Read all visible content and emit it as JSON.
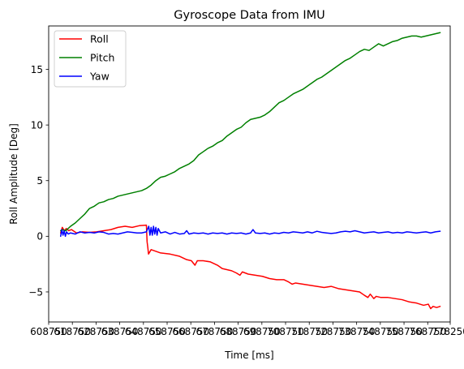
{
  "chart_data": {
    "type": "line",
    "title": "Gyroscope Data from IMU",
    "xlabel": "Time [ms]",
    "ylabel": "Roll Amplitude [Deg]",
    "xlim": [
      608750,
      778250
    ],
    "ylim": [
      -7.7,
      18.9
    ],
    "x_ticks": [
      608750,
      618750,
      628750,
      638750,
      648750,
      658750,
      668750,
      678750,
      688750,
      698750,
      708750,
      718750,
      728750,
      738750,
      748750,
      758750,
      768750,
      778250
    ],
    "x_tick_labels": [
      "608750",
      "618750",
      "628750",
      "638750",
      "648750",
      "658750",
      "668750",
      "678750",
      "688750",
      "698750",
      "708750",
      "718750",
      "728750",
      "738750",
      "748750",
      "758750",
      "768750",
      "778250"
    ],
    "y_ticks": [
      -5,
      0,
      5,
      10,
      15
    ],
    "y_tick_labels": [
      "−5",
      "0",
      "5",
      "10",
      "15"
    ],
    "legend_position": "upper-left",
    "grid": false,
    "series": [
      {
        "name": "Roll",
        "color": "#ff0000",
        "points": [
          [
            613800,
            0.3
          ],
          [
            614500,
            0.8
          ],
          [
            615400,
            0.5
          ],
          [
            616200,
            0.7
          ],
          [
            617200,
            0.5
          ],
          [
            618400,
            0.6
          ],
          [
            620500,
            0.3
          ],
          [
            623000,
            0.4
          ],
          [
            626000,
            0.35
          ],
          [
            629000,
            0.4
          ],
          [
            632000,
            0.5
          ],
          [
            635000,
            0.6
          ],
          [
            638000,
            0.8
          ],
          [
            641000,
            0.9
          ],
          [
            644000,
            0.8
          ],
          [
            647000,
            0.95
          ],
          [
            650000,
            1.0
          ],
          [
            650300,
            -0.5
          ],
          [
            650600,
            -1.0
          ],
          [
            650900,
            -1.6
          ],
          [
            652000,
            -1.2
          ],
          [
            656000,
            -1.5
          ],
          [
            660000,
            -1.6
          ],
          [
            664000,
            -1.8
          ],
          [
            667000,
            -2.1
          ],
          [
            669000,
            -2.2
          ],
          [
            670500,
            -2.6
          ],
          [
            671500,
            -2.2
          ],
          [
            674000,
            -2.2
          ],
          [
            677000,
            -2.3
          ],
          [
            680000,
            -2.6
          ],
          [
            682000,
            -2.9
          ],
          [
            684000,
            -3.0
          ],
          [
            686000,
            -3.1
          ],
          [
            688000,
            -3.3
          ],
          [
            689500,
            -3.5
          ],
          [
            690500,
            -3.2
          ],
          [
            693000,
            -3.4
          ],
          [
            696000,
            -3.5
          ],
          [
            699000,
            -3.6
          ],
          [
            702000,
            -3.8
          ],
          [
            705000,
            -3.9
          ],
          [
            708000,
            -3.9
          ],
          [
            710000,
            -4.1
          ],
          [
            711500,
            -4.3
          ],
          [
            713000,
            -4.2
          ],
          [
            716000,
            -4.3
          ],
          [
            719000,
            -4.4
          ],
          [
            722000,
            -4.5
          ],
          [
            725000,
            -4.6
          ],
          [
            728000,
            -4.5
          ],
          [
            731000,
            -4.7
          ],
          [
            734000,
            -4.8
          ],
          [
            737000,
            -4.9
          ],
          [
            740000,
            -5.0
          ],
          [
            742000,
            -5.3
          ],
          [
            743500,
            -5.5
          ],
          [
            744500,
            -5.2
          ],
          [
            746000,
            -5.6
          ],
          [
            747000,
            -5.4
          ],
          [
            749000,
            -5.5
          ],
          [
            752000,
            -5.5
          ],
          [
            755000,
            -5.6
          ],
          [
            758000,
            -5.7
          ],
          [
            761000,
            -5.9
          ],
          [
            764000,
            -6.0
          ],
          [
            767000,
            -6.2
          ],
          [
            769000,
            -6.1
          ],
          [
            770000,
            -6.5
          ],
          [
            771000,
            -6.3
          ],
          [
            772500,
            -6.4
          ],
          [
            774000,
            -6.3
          ]
        ]
      },
      {
        "name": "Pitch",
        "color": "#008000",
        "points": [
          [
            613800,
            0.5
          ],
          [
            614500,
            0.6
          ],
          [
            616000,
            0.5
          ],
          [
            618000,
            0.9
          ],
          [
            620000,
            1.2
          ],
          [
            622000,
            1.6
          ],
          [
            624000,
            2.0
          ],
          [
            626000,
            2.5
          ],
          [
            628000,
            2.7
          ],
          [
            630000,
            3.0
          ],
          [
            632000,
            3.1
          ],
          [
            634000,
            3.3
          ],
          [
            636000,
            3.4
          ],
          [
            638000,
            3.6
          ],
          [
            640000,
            3.7
          ],
          [
            642000,
            3.8
          ],
          [
            644000,
            3.9
          ],
          [
            646000,
            4.0
          ],
          [
            648000,
            4.1
          ],
          [
            650000,
            4.3
          ],
          [
            652000,
            4.6
          ],
          [
            654000,
            5.0
          ],
          [
            656000,
            5.3
          ],
          [
            658000,
            5.4
          ],
          [
            660000,
            5.6
          ],
          [
            662000,
            5.8
          ],
          [
            664000,
            6.1
          ],
          [
            666000,
            6.3
          ],
          [
            668000,
            6.5
          ],
          [
            670000,
            6.8
          ],
          [
            672000,
            7.3
          ],
          [
            674000,
            7.6
          ],
          [
            676000,
            7.9
          ],
          [
            678000,
            8.1
          ],
          [
            680000,
            8.4
          ],
          [
            682000,
            8.6
          ],
          [
            684000,
            9.0
          ],
          [
            686000,
            9.3
          ],
          [
            688000,
            9.6
          ],
          [
            690000,
            9.8
          ],
          [
            692000,
            10.2
          ],
          [
            694000,
            10.5
          ],
          [
            696000,
            10.6
          ],
          [
            698000,
            10.7
          ],
          [
            700000,
            10.9
          ],
          [
            702000,
            11.2
          ],
          [
            704000,
            11.6
          ],
          [
            706000,
            12.0
          ],
          [
            708000,
            12.2
          ],
          [
            710000,
            12.5
          ],
          [
            712000,
            12.8
          ],
          [
            714000,
            13.0
          ],
          [
            716000,
            13.2
          ],
          [
            718000,
            13.5
          ],
          [
            720000,
            13.8
          ],
          [
            722000,
            14.1
          ],
          [
            724000,
            14.3
          ],
          [
            726000,
            14.6
          ],
          [
            728000,
            14.9
          ],
          [
            730000,
            15.2
          ],
          [
            732000,
            15.5
          ],
          [
            734000,
            15.8
          ],
          [
            736000,
            16.0
          ],
          [
            738000,
            16.3
          ],
          [
            740000,
            16.6
          ],
          [
            742000,
            16.8
          ],
          [
            744000,
            16.7
          ],
          [
            746000,
            17.0
          ],
          [
            748000,
            17.3
          ],
          [
            750000,
            17.1
          ],
          [
            752000,
            17.3
          ],
          [
            754000,
            17.5
          ],
          [
            756000,
            17.6
          ],
          [
            758000,
            17.8
          ],
          [
            760000,
            17.9
          ],
          [
            762000,
            18.0
          ],
          [
            764000,
            18.0
          ],
          [
            766000,
            17.9
          ],
          [
            768000,
            18.0
          ],
          [
            770000,
            18.1
          ],
          [
            774000,
            18.3
          ]
        ]
      },
      {
        "name": "Yaw",
        "color": "#0000ff",
        "points": [
          [
            613800,
            0.0
          ],
          [
            614300,
            0.6
          ],
          [
            614800,
            0.1
          ],
          [
            615300,
            0.5
          ],
          [
            615800,
            0.0
          ],
          [
            616300,
            0.4
          ],
          [
            617000,
            0.2
          ],
          [
            618000,
            0.3
          ],
          [
            620000,
            0.2
          ],
          [
            622000,
            0.4
          ],
          [
            624000,
            0.3
          ],
          [
            626000,
            0.35
          ],
          [
            628000,
            0.3
          ],
          [
            630000,
            0.4
          ],
          [
            632000,
            0.35
          ],
          [
            634000,
            0.2
          ],
          [
            636000,
            0.25
          ],
          [
            638000,
            0.2
          ],
          [
            640000,
            0.3
          ],
          [
            642000,
            0.4
          ],
          [
            644000,
            0.35
          ],
          [
            646000,
            0.3
          ],
          [
            648000,
            0.3
          ],
          [
            650000,
            0.4
          ],
          [
            651000,
            0.9
          ],
          [
            651500,
            0.1
          ],
          [
            652000,
            0.8
          ],
          [
            652500,
            0.1
          ],
          [
            653000,
            0.9
          ],
          [
            653500,
            0.2
          ],
          [
            654000,
            0.8
          ],
          [
            654500,
            0.1
          ],
          [
            655000,
            0.7
          ],
          [
            656000,
            0.3
          ],
          [
            658000,
            0.4
          ],
          [
            660000,
            0.2
          ],
          [
            662000,
            0.35
          ],
          [
            664000,
            0.2
          ],
          [
            666000,
            0.25
          ],
          [
            667000,
            0.5
          ],
          [
            668000,
            0.2
          ],
          [
            670000,
            0.3
          ],
          [
            672000,
            0.25
          ],
          [
            674000,
            0.3
          ],
          [
            676000,
            0.2
          ],
          [
            678000,
            0.3
          ],
          [
            680000,
            0.25
          ],
          [
            682000,
            0.3
          ],
          [
            684000,
            0.2
          ],
          [
            686000,
            0.3
          ],
          [
            688000,
            0.25
          ],
          [
            690000,
            0.3
          ],
          [
            692000,
            0.2
          ],
          [
            694000,
            0.3
          ],
          [
            695000,
            0.6
          ],
          [
            696000,
            0.3
          ],
          [
            698000,
            0.25
          ],
          [
            700000,
            0.3
          ],
          [
            702000,
            0.2
          ],
          [
            704000,
            0.3
          ],
          [
            706000,
            0.25
          ],
          [
            708000,
            0.35
          ],
          [
            710000,
            0.3
          ],
          [
            712000,
            0.4
          ],
          [
            714000,
            0.35
          ],
          [
            716000,
            0.3
          ],
          [
            718000,
            0.4
          ],
          [
            720000,
            0.3
          ],
          [
            722000,
            0.45
          ],
          [
            724000,
            0.35
          ],
          [
            726000,
            0.3
          ],
          [
            728000,
            0.25
          ],
          [
            730000,
            0.3
          ],
          [
            732000,
            0.4
          ],
          [
            734000,
            0.45
          ],
          [
            736000,
            0.4
          ],
          [
            738000,
            0.5
          ],
          [
            740000,
            0.4
          ],
          [
            742000,
            0.3
          ],
          [
            744000,
            0.35
          ],
          [
            746000,
            0.4
          ],
          [
            748000,
            0.3
          ],
          [
            750000,
            0.35
          ],
          [
            752000,
            0.4
          ],
          [
            754000,
            0.3
          ],
          [
            756000,
            0.35
          ],
          [
            758000,
            0.3
          ],
          [
            760000,
            0.4
          ],
          [
            762000,
            0.35
          ],
          [
            764000,
            0.3
          ],
          [
            766000,
            0.35
          ],
          [
            768000,
            0.4
          ],
          [
            770000,
            0.3
          ],
          [
            772000,
            0.4
          ],
          [
            774000,
            0.45
          ]
        ]
      }
    ]
  }
}
